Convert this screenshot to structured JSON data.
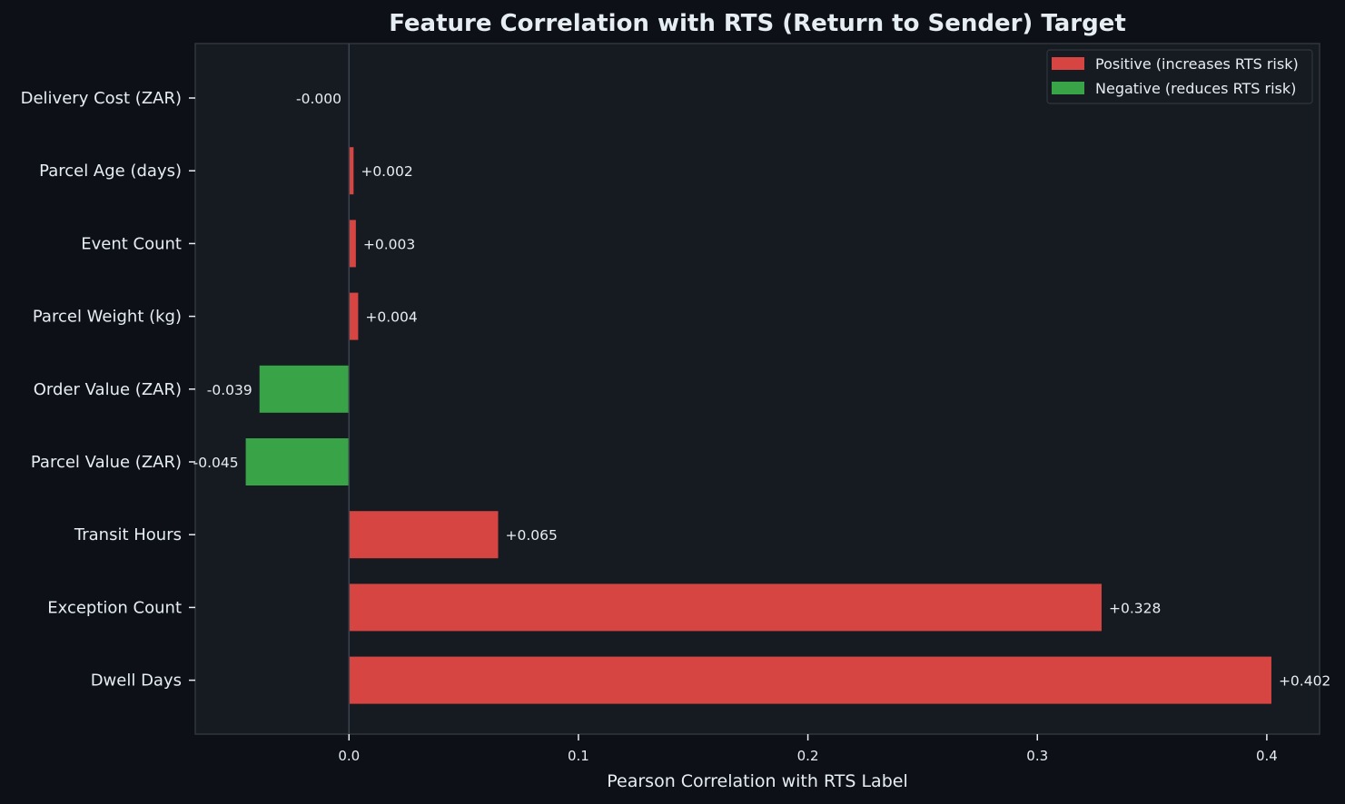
{
  "chart_data": {
    "type": "bar",
    "orientation": "horizontal",
    "title": "Feature Correlation with RTS (Return to Sender) Target",
    "xlabel": "Pearson Correlation with RTS Label",
    "ylabel": "",
    "xlim": [
      -0.067,
      0.423
    ],
    "xticks": [
      0.0,
      0.1,
      0.2,
      0.3,
      0.4
    ],
    "xtick_labels": [
      "0.0",
      "0.1",
      "0.2",
      "0.3",
      "0.4"
    ],
    "categories": [
      "Delivery Cost (ZAR)",
      "Parcel Age (days)",
      "Event Count",
      "Parcel Weight (kg)",
      "Order Value (ZAR)",
      "Parcel Value (ZAR)",
      "Transit Hours",
      "Exception Count",
      "Dwell Days"
    ],
    "values": [
      -0.0001,
      0.002,
      0.003,
      0.004,
      -0.039,
      -0.045,
      0.065,
      0.328,
      0.402
    ],
    "value_labels": [
      "-0.000",
      "+0.002",
      "+0.003",
      "+0.004",
      "-0.039",
      "-0.045",
      "+0.065",
      "+0.328",
      "+0.402"
    ],
    "legend": {
      "position": "top-right",
      "entries": [
        {
          "label": "Positive (increases RTS risk)",
          "color": "#d64541"
        },
        {
          "label": "Negative (reduces RTS risk)",
          "color": "#39a347"
        }
      ]
    },
    "colors": {
      "positive": "#d64541",
      "negative": "#39a347",
      "background": "#0d1117",
      "plot_background": "#161b22",
      "text": "#e6edf3",
      "spine": "#30363d"
    },
    "grid": false
  }
}
